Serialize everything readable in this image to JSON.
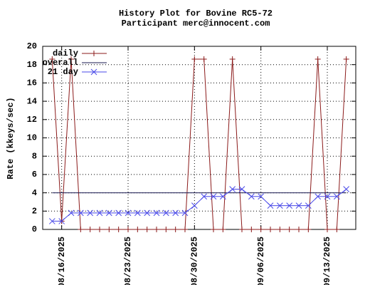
{
  "chart_data": {
    "type": "line",
    "title": "History Plot for Bovine RC5-72",
    "subtitle": "Participant merc@innocent.com",
    "y_label": "Rate (kkeys/sec)",
    "x": [
      "08/15/2025",
      "08/16/2025",
      "08/17/2025",
      "08/18/2025",
      "08/19/2025",
      "08/20/2025",
      "08/21/2025",
      "08/22/2025",
      "08/23/2025",
      "08/24/2025",
      "08/25/2025",
      "08/26/2025",
      "08/27/2025",
      "08/28/2025",
      "08/29/2025",
      "08/30/2025",
      "08/31/2025",
      "09/01/2025",
      "09/02/2025",
      "09/03/2025",
      "09/04/2025",
      "09/05/2025",
      "09/06/2025",
      "09/07/2025",
      "09/08/2025",
      "09/09/2025",
      "09/10/2025",
      "09/11/2025",
      "09/12/2025",
      "09/13/2025",
      "09/14/2025",
      "09/15/2025"
    ],
    "series": [
      {
        "name": "daily",
        "color": "#8b1a1a",
        "marker": "plus",
        "values": [
          18.6,
          0.9,
          18.6,
          0,
          0,
          0,
          0,
          0,
          0,
          0,
          0,
          0,
          0,
          0,
          0,
          18.6,
          18.6,
          0,
          0,
          18.6,
          0,
          0,
          0,
          0,
          0,
          0,
          0,
          0,
          18.6,
          0,
          0,
          18.6
        ]
      },
      {
        "name": "overall",
        "color": "#1a1a50",
        "marker": null,
        "values": [
          4,
          4,
          4,
          4,
          4,
          4,
          4,
          4,
          4,
          4,
          4,
          4,
          4,
          4,
          4,
          4,
          4,
          4,
          4,
          4,
          4,
          4,
          4,
          4,
          4,
          4,
          4,
          4,
          4,
          4,
          4,
          4
        ]
      },
      {
        "name": "21 day",
        "color": "#4a4ae8",
        "marker": "cross",
        "values": [
          0.9,
          0.9,
          1.8,
          1.8,
          1.8,
          1.8,
          1.8,
          1.8,
          1.8,
          1.8,
          1.8,
          1.8,
          1.8,
          1.8,
          1.8,
          2.6,
          3.6,
          3.6,
          3.6,
          4.4,
          4.4,
          3.6,
          3.6,
          2.6,
          2.6,
          2.6,
          2.6,
          2.6,
          3.6,
          3.6,
          3.6,
          4.4
        ]
      }
    ],
    "xlim": [
      "08/14/2025",
      "09/16/2025"
    ],
    "xticks": [
      "08/16/2025",
      "08/23/2025",
      "08/30/2025",
      "09/06/2025",
      "09/13/2025"
    ],
    "ylim": [
      0,
      20
    ],
    "yticks": [
      0,
      2,
      4,
      6,
      8,
      10,
      12,
      14,
      16,
      18,
      20
    ],
    "grid": true,
    "legend": "top-left"
  }
}
